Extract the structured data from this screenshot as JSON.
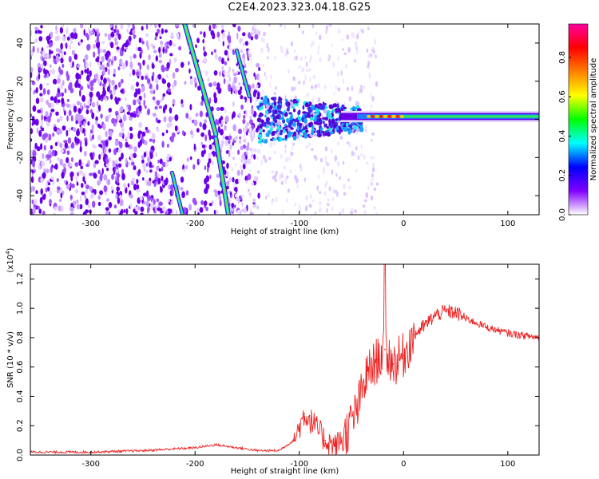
{
  "title": "C2E4.2023.323.04.18.G25",
  "chart_data": [
    {
      "type": "heatmap",
      "name": "spectrogram",
      "xlabel": "Height of straight line (km)",
      "ylabel": "Frequency (Hz)",
      "xlim": [
        -358,
        130
      ],
      "ylim": [
        -50,
        50
      ],
      "xticks": [
        -300,
        -200,
        -100,
        0,
        100
      ],
      "yticks": [
        -40,
        -20,
        0,
        20,
        40
      ],
      "colorbar": {
        "label": "Normalized spectral amplitude",
        "range": [
          0,
          0.97
        ],
        "ticks": [
          "0.0",
          "0.2",
          "0.4",
          "0.6",
          "0.8"
        ],
        "colors": [
          "#ffffff",
          "#8000ff",
          "#0000ff",
          "#00ffff",
          "#00ff00",
          "#ffff00",
          "#ff8000",
          "#ff0000",
          "#ff00a0"
        ]
      },
      "features": {
        "steep_trace_1": {
          "x": [
            -210,
            -180
          ],
          "y": [
            50,
            -8
          ]
        },
        "steep_trace_2": {
          "x": [
            -180,
            -168
          ],
          "y": [
            -10,
            -50
          ]
        },
        "steep_trace_3": {
          "x": [
            -160,
            -148
          ],
          "y": [
            36,
            12
          ]
        },
        "left_trace": {
          "x": [
            -222,
            -212
          ],
          "y": [
            -28,
            -50
          ]
        },
        "horizontal_band": {
          "x": [
            -60,
            130
          ],
          "y": [
            1.5,
            1.5
          ]
        }
      }
    },
    {
      "type": "line",
      "name": "snr",
      "xlabel": "Height of straight line (km)",
      "ylabel": "SNR (10 * v/v)",
      "multiplier": "(x10",
      "multiplier_exp": "4",
      "multiplier_close": ")",
      "xlim": [
        -358,
        130
      ],
      "ylim": [
        0,
        1.3
      ],
      "xticks": [
        -300,
        -200,
        -100,
        0,
        100
      ],
      "yticks": [
        "0.0",
        "0.2",
        "0.4",
        "0.6",
        "0.8",
        "1.0",
        "1.2"
      ],
      "color": "#ee2222",
      "x": [
        -358,
        -340,
        -300,
        -250,
        -200,
        -180,
        -160,
        -140,
        -120,
        -105,
        -95,
        -85,
        -75,
        -65,
        -55,
        -45,
        -35,
        -25,
        -18,
        -10,
        0,
        10,
        20,
        30,
        40,
        50,
        60,
        70,
        80,
        90,
        100,
        110,
        120,
        130
      ],
      "y": [
        0.02,
        0.02,
        0.02,
        0.03,
        0.05,
        0.07,
        0.05,
        0.03,
        0.03,
        0.1,
        0.28,
        0.2,
        0.1,
        0.06,
        0.15,
        0.3,
        0.55,
        0.65,
        0.72,
        0.62,
        0.68,
        0.82,
        0.88,
        0.95,
        0.98,
        0.97,
        0.93,
        0.9,
        0.87,
        0.85,
        0.83,
        0.82,
        0.81,
        0.8
      ]
    }
  ]
}
